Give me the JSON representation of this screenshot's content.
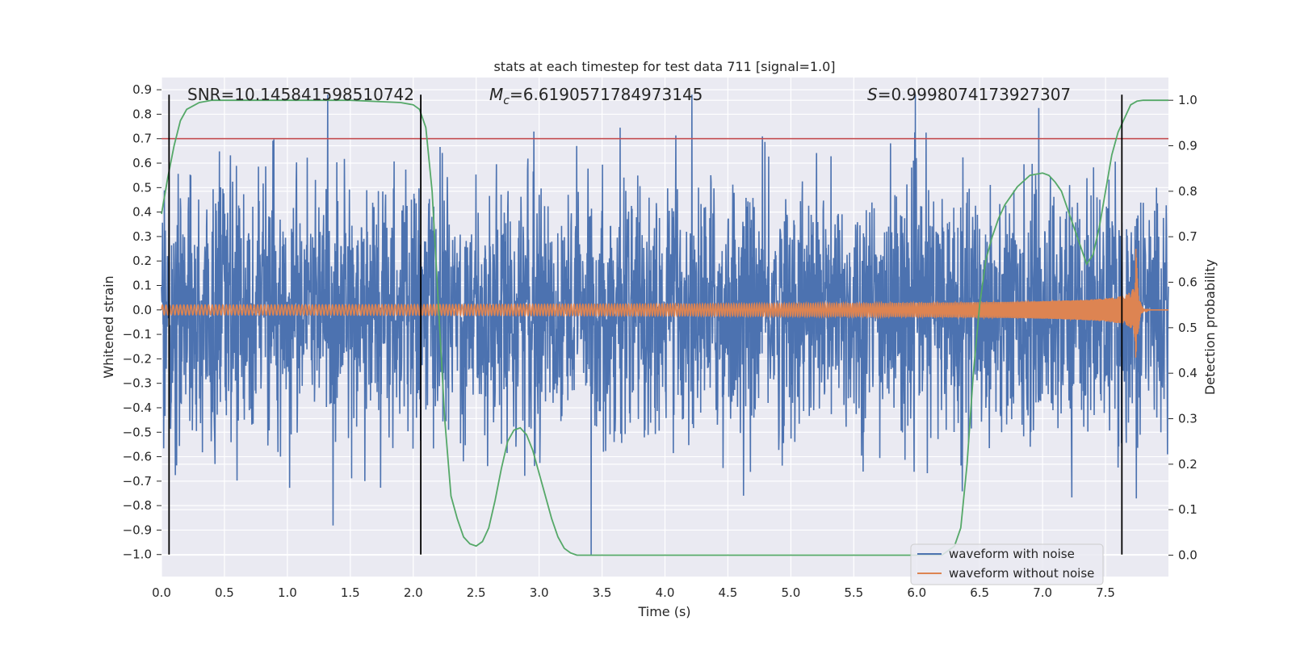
{
  "chart_data": {
    "type": "line",
    "title": "stats at each timestep for test data 711 [signal=1.0]",
    "xlabel": "Time (s)",
    "ylabel": "Whitened strain",
    "ylabel_right": "Detection probability",
    "xlim": [
      0.0,
      8.0
    ],
    "ylim": [
      -1.09,
      0.95
    ],
    "ylim_right": [
      -0.047,
      1.05
    ],
    "x_ticks": [
      "0.0",
      "0.5",
      "1.0",
      "1.5",
      "2.0",
      "2.5",
      "3.0",
      "3.5",
      "4.0",
      "4.5",
      "5.0",
      "5.5",
      "6.0",
      "6.5",
      "7.0",
      "7.5"
    ],
    "y_ticks": [
      "0.9",
      "0.8",
      "0.7",
      "0.6",
      "0.5",
      "0.4",
      "0.3",
      "0.2",
      "0.1",
      "0.0",
      "-0.1",
      "-0.2",
      "-0.3",
      "-0.4",
      "-0.5",
      "-0.6",
      "-0.7",
      "-0.8",
      "-0.9",
      "-1.0"
    ],
    "y_ticks_right": [
      "1.0",
      "0.9",
      "0.8",
      "0.7",
      "0.6",
      "0.5",
      "0.4",
      "0.3",
      "0.2",
      "0.1",
      "0.0"
    ],
    "annotations": {
      "snr": "SNR=10.145841598510742",
      "mc_symbol": "M",
      "mc_sub": "c",
      "mc_value": "=6.6190571784973145",
      "s_symbol": "S",
      "s_value": "=0.9998074173927307"
    },
    "threshold": {
      "y": 0.7,
      "color": "#c44e52"
    },
    "vertical_lines_x": [
      0.06,
      2.06,
      7.63
    ],
    "vertical_line_range": [
      -1.0,
      0.88
    ],
    "grid": true,
    "legend_position": "lower-right",
    "series": [
      {
        "name": "waveform with noise",
        "color": "#4c72b0",
        "envelope": {
          "x": [
            0.0,
            1.0,
            2.0,
            3.0,
            4.0,
            5.0,
            6.0,
            7.0,
            8.0
          ],
          "typical_abs": 0.32,
          "peaks_max": 0.88,
          "peaks_min": -1.0
        }
      },
      {
        "name": "waveform without noise",
        "color": "#dd8452",
        "chirp": {
          "x_start": 0.0,
          "x_merger": 7.74,
          "amplitude_start": 0.02,
          "amplitude_peak": 0.3,
          "frequency_start": 35,
          "frequency_end": 140
        }
      },
      {
        "name": "detection probability",
        "axis": "right",
        "color": "#55a868",
        "x": [
          0.0,
          0.05,
          0.1,
          0.15,
          0.2,
          0.3,
          0.4,
          0.6,
          1.0,
          1.5,
          1.9,
          2.0,
          2.05,
          2.1,
          2.15,
          2.2,
          2.25,
          2.3,
          2.35,
          2.4,
          2.45,
          2.5,
          2.55,
          2.6,
          2.65,
          2.7,
          2.75,
          2.8,
          2.85,
          2.9,
          2.95,
          3.0,
          3.05,
          3.1,
          3.15,
          3.2,
          3.25,
          3.3,
          3.4,
          4.0,
          5.0,
          6.0,
          6.2,
          6.3,
          6.35,
          6.4,
          6.45,
          6.5,
          6.55,
          6.6,
          6.65,
          6.7,
          6.8,
          6.9,
          7.0,
          7.05,
          7.1,
          7.15,
          7.2,
          7.25,
          7.3,
          7.35,
          7.4,
          7.45,
          7.5,
          7.55,
          7.6,
          7.65,
          7.7,
          7.75,
          7.8,
          7.9,
          8.0
        ],
        "y": [
          0.75,
          0.83,
          0.9,
          0.955,
          0.98,
          0.995,
          1.0,
          1.0,
          1.0,
          1.0,
          0.995,
          0.99,
          0.98,
          0.94,
          0.8,
          0.55,
          0.3,
          0.13,
          0.08,
          0.04,
          0.025,
          0.02,
          0.03,
          0.06,
          0.12,
          0.19,
          0.25,
          0.275,
          0.28,
          0.265,
          0.23,
          0.18,
          0.13,
          0.08,
          0.04,
          0.015,
          0.005,
          0.0,
          0.0,
          0.0,
          0.0,
          0.0,
          0.0,
          0.02,
          0.06,
          0.2,
          0.4,
          0.55,
          0.65,
          0.7,
          0.74,
          0.77,
          0.81,
          0.835,
          0.84,
          0.835,
          0.82,
          0.8,
          0.76,
          0.72,
          0.68,
          0.64,
          0.66,
          0.72,
          0.8,
          0.88,
          0.93,
          0.96,
          0.99,
          0.998,
          1.0,
          1.0,
          1.0
        ]
      }
    ],
    "legend": [
      "waveform with noise",
      "waveform without noise"
    ]
  }
}
